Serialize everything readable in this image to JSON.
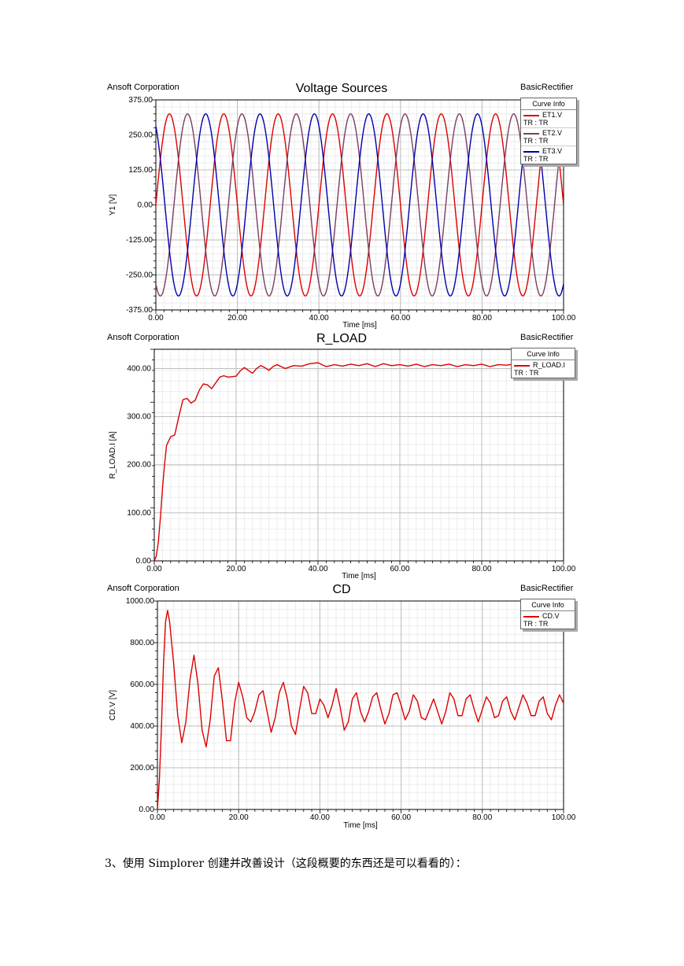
{
  "chart_data": [
    {
      "type": "line",
      "title": "Voltage Sources",
      "company": "Ansoft Corporation",
      "project": "BasicRectifier",
      "xlabel": "Time [ms]",
      "ylabel": "Y1 [V]",
      "xlim": [
        0,
        100
      ],
      "ylim": [
        -375,
        375
      ],
      "x_ticks": [
        "0.00",
        "20.00",
        "40.00",
        "60.00",
        "80.00",
        "100.00"
      ],
      "y_ticks": [
        "375.00",
        "250.00",
        "125.00",
        "0.00",
        "-125.00",
        "-250.00",
        "-375.00"
      ],
      "grid": true,
      "legend_position": "top-right",
      "legend_title": "Curve Info",
      "series": [
        {
          "name": "ET1.V",
          "sub": "TR : TR",
          "color": "#dd0000",
          "amplitude": 325,
          "frequency_hz": 75,
          "phase_deg": 0
        },
        {
          "name": "ET2.V",
          "sub": "TR : TR",
          "color": "#7a3d63",
          "amplitude": 325,
          "frequency_hz": 75,
          "phase_deg": -120
        },
        {
          "name": "ET3.V",
          "sub": "TR : TR",
          "color": "#0000aa",
          "amplitude": 325,
          "frequency_hz": 75,
          "phase_deg": 120
        }
      ]
    },
    {
      "type": "line",
      "title": "R_LOAD",
      "company": "Ansoft Corporation",
      "project": "BasicRectifier",
      "xlabel": "Time [ms]",
      "ylabel": "R_LOAD.I [A]",
      "xlim": [
        0,
        100
      ],
      "ylim": [
        0,
        440
      ],
      "x_ticks": [
        "0.00",
        "20.00",
        "40.00",
        "60.00",
        "80.00",
        "100.00"
      ],
      "y_ticks": [
        "400.00",
        "300.00",
        "200.00",
        "100.00",
        "0.00"
      ],
      "grid": true,
      "legend_position": "top-right",
      "legend_title": "Curve Info",
      "series": [
        {
          "name": "R_LOAD.I",
          "sub": "TR : TR",
          "color": "#dd0000",
          "x": [
            0,
            0.5,
            1,
            1.5,
            2,
            2.5,
            3,
            4,
            5,
            6,
            7,
            8,
            9,
            10,
            11,
            12,
            13,
            14,
            15,
            16,
            17,
            18,
            19,
            20,
            21,
            22,
            23,
            24,
            25,
            26,
            27,
            28,
            29,
            30,
            32,
            34,
            36,
            38,
            40,
            42,
            44,
            46,
            48,
            50,
            52,
            54,
            56,
            58,
            60,
            62,
            64,
            66,
            68,
            70,
            72,
            74,
            76,
            78,
            80,
            82,
            84,
            86,
            88,
            90,
            92,
            94,
            96,
            98,
            100
          ],
          "values": [
            0,
            10,
            40,
            90,
            150,
            200,
            240,
            258,
            262,
            300,
            335,
            338,
            328,
            334,
            355,
            368,
            366,
            358,
            370,
            382,
            385,
            382,
            383,
            384,
            395,
            402,
            396,
            390,
            400,
            406,
            402,
            396,
            404,
            408,
            400,
            406,
            405,
            410,
            412,
            404,
            408,
            405,
            409,
            406,
            410,
            404,
            410,
            406,
            408,
            405,
            409,
            404,
            408,
            406,
            409,
            404,
            408,
            406,
            409,
            404,
            408,
            407,
            409,
            405,
            410,
            404,
            409,
            406,
            410
          ]
        }
      ]
    },
    {
      "type": "line",
      "title": "CD",
      "company": "Ansoft Corporation",
      "project": "BasicRectifier",
      "xlabel": "Time [ms]",
      "ylabel": "CD.V [V]",
      "xlim": [
        0,
        100
      ],
      "ylim": [
        0,
        1000
      ],
      "x_ticks": [
        "0.00",
        "20.00",
        "40.00",
        "60.00",
        "80.00",
        "100.00"
      ],
      "y_ticks": [
        "1000.00",
        "800.00",
        "600.00",
        "400.00",
        "200.00",
        "0.00"
      ],
      "grid": true,
      "legend_position": "top-right",
      "legend_title": "Curve Info",
      "series": [
        {
          "name": "CD.V",
          "sub": "TR : TR",
          "color": "#dd0000",
          "x": [
            0,
            0.5,
            1,
            1.5,
            2,
            2.5,
            3,
            4,
            5,
            6,
            7,
            8,
            9,
            10,
            11,
            12,
            13,
            14,
            15,
            16,
            17,
            18,
            19,
            20,
            21,
            22,
            23,
            24,
            25,
            26,
            27,
            28,
            29,
            30,
            31,
            32,
            33,
            34,
            35,
            36,
            37,
            38,
            39,
            40,
            41,
            42,
            43,
            44,
            45,
            46,
            47,
            48,
            49,
            50,
            51,
            52,
            53,
            54,
            55,
            56,
            57,
            58,
            59,
            60,
            61,
            62,
            63,
            64,
            65,
            66,
            67,
            68,
            69,
            70,
            71,
            72,
            73,
            74,
            75,
            76,
            77,
            78,
            79,
            80,
            81,
            82,
            83,
            84,
            85,
            86,
            87,
            88,
            89,
            90,
            91,
            92,
            93,
            94,
            95,
            96,
            97,
            98,
            99,
            100
          ],
          "values": [
            0,
            150,
            400,
            700,
            900,
            955,
            900,
            700,
            450,
            320,
            420,
            620,
            740,
            600,
            380,
            300,
            430,
            640,
            680,
            520,
            330,
            330,
            510,
            610,
            540,
            440,
            420,
            470,
            550,
            570,
            470,
            370,
            440,
            560,
            610,
            530,
            400,
            360,
            480,
            590,
            560,
            460,
            460,
            530,
            500,
            440,
            500,
            580,
            490,
            380,
            420,
            530,
            560,
            470,
            420,
            470,
            540,
            560,
            480,
            410,
            460,
            550,
            560,
            500,
            430,
            470,
            550,
            520,
            440,
            430,
            480,
            530,
            470,
            410,
            470,
            560,
            530,
            450,
            450,
            530,
            550,
            480,
            420,
            480,
            540,
            510,
            440,
            450,
            520,
            540,
            470,
            430,
            490,
            550,
            510,
            450,
            450,
            520,
            540,
            460,
            430,
            500,
            550,
            510
          ]
        }
      ]
    }
  ],
  "footer": {
    "text": "3、使用 Simplorer 创建并改善设计（这段概要的东西还是可以看看的）："
  }
}
